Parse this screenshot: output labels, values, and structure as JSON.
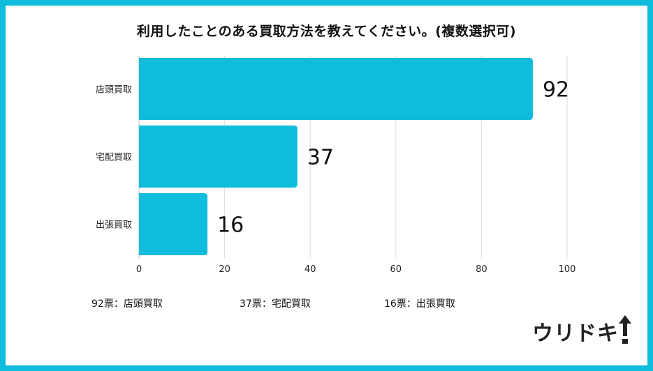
{
  "chart_data": {
    "type": "bar",
    "orientation": "horizontal",
    "title": "利用したことのある買取方法を教えてください。(複数選択可)",
    "categories": [
      "店頭買取",
      "宅配買取",
      "出張買取"
    ],
    "values": [
      92,
      37,
      16
    ],
    "xlim": [
      0,
      100
    ],
    "xticks": [
      "0",
      "20",
      "40",
      "60",
      "80",
      "100"
    ],
    "grid": true,
    "bar_color": "#10bcdc"
  },
  "legend": [
    {
      "label": "92票：店頭買取"
    },
    {
      "label": "37票：宅配買取"
    },
    {
      "label": "16票：出張買取"
    }
  ],
  "logo": {
    "text": "ウリドキ"
  },
  "colors": {
    "frame": "#10bcdc",
    "bar": "#10bcdc"
  }
}
